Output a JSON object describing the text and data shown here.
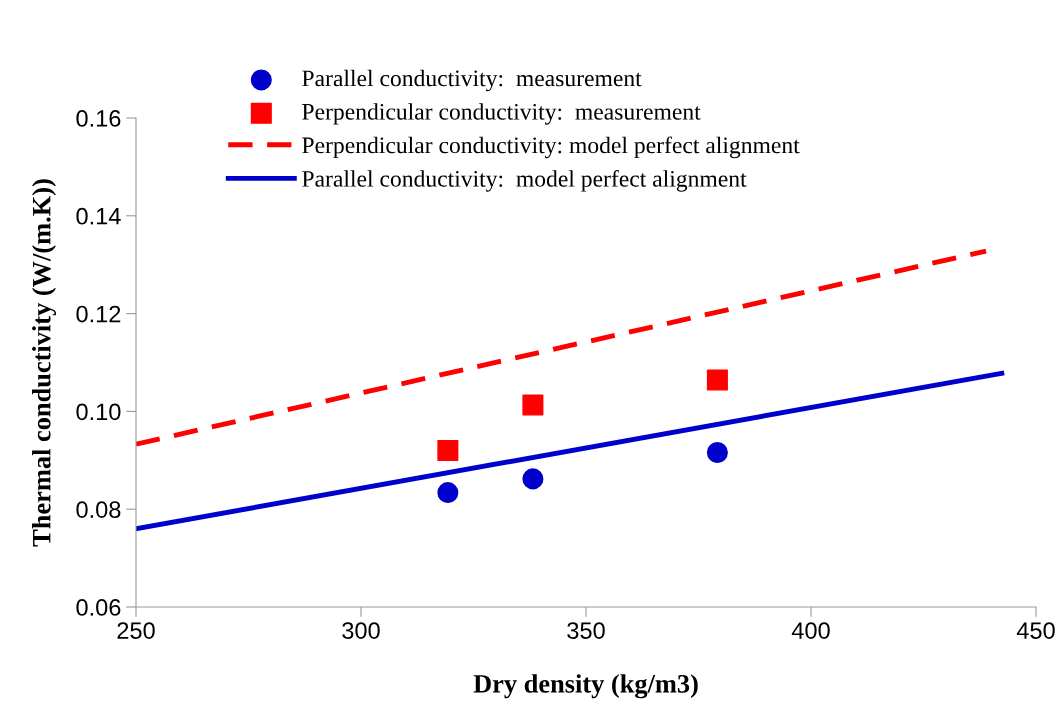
{
  "chart_data": {
    "type": "scatter",
    "xlabel": "Dry density (kg/m3)",
    "ylabel": "Thermal conductivity (W/(m.K))",
    "xlim": [
      250,
      450
    ],
    "xticks": [
      250,
      300,
      350,
      400,
      450
    ],
    "ylim": [
      0.06,
      0.16
    ],
    "yticks": [
      {
        "value": 0.06,
        "label": "0.06"
      },
      {
        "value": 0.08,
        "label": "0.08"
      },
      {
        "value": 0.1,
        "label": "0.10"
      },
      {
        "value": 0.12,
        "label": "0.12"
      },
      {
        "value": 0.14,
        "label": "0.14"
      },
      {
        "value": 0.16,
        "label": "0.16"
      }
    ],
    "grid": false,
    "legend": "top",
    "series": [
      {
        "name": "Parallel conductivity:  measurement",
        "marker": "circle",
        "color": "#0000cc",
        "x": [
          319.3,
          338.2,
          379.2
        ],
        "values": [
          0.0834,
          0.0862,
          0.0916
        ]
      },
      {
        "name": "Perpendicular conductivity:  measurement",
        "marker": "square",
        "color": "#ff0000",
        "x": [
          319.3,
          338.2,
          379.2
        ],
        "values": [
          0.092,
          0.1013,
          0.1064
        ]
      },
      {
        "name": "Perpendicular conductivity: model perfect alignment",
        "type": "line",
        "line_style": "dashed",
        "color": "#ff0000",
        "x": [
          250,
          438.9
        ],
        "values": [
          0.0933,
          0.1328
        ]
      },
      {
        "name": "Parallel conductivity:  model perfect alignment",
        "type": "line",
        "line_style": "solid",
        "color": "#0000cc",
        "x": [
          250,
          442.4
        ],
        "values": [
          0.076,
          0.1078
        ]
      }
    ]
  }
}
